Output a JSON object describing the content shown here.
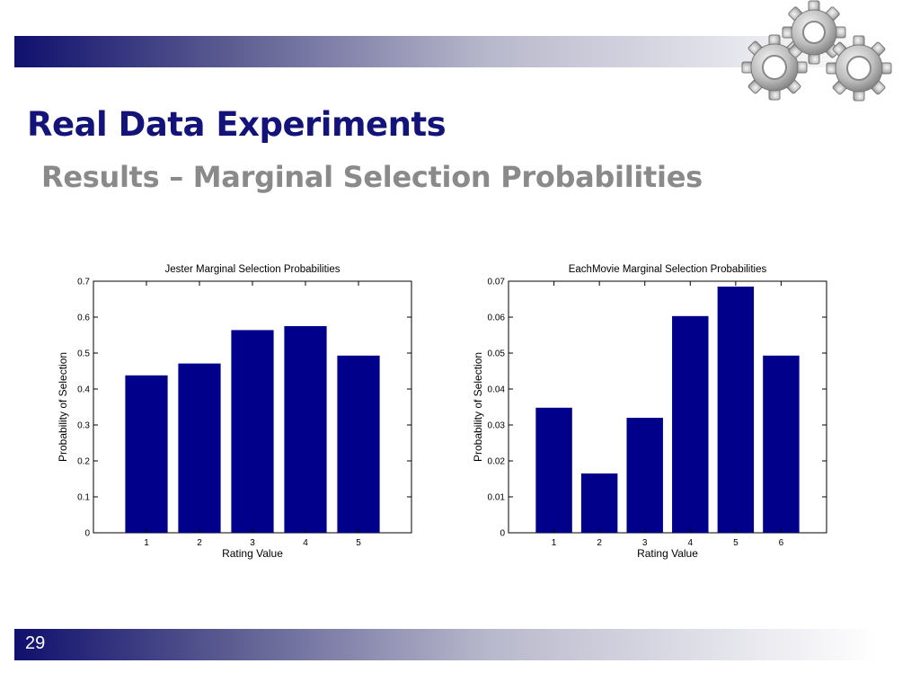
{
  "slide": {
    "title": "Real Data Experiments",
    "subtitle": "Results – Marginal Selection Probabilities",
    "page_number": "29"
  },
  "chart_data": [
    {
      "type": "bar",
      "title": "Jester Marginal Selection Probabilities",
      "xlabel": "Rating Value",
      "ylabel": "Probability of Selection",
      "categories": [
        "1",
        "2",
        "3",
        "4",
        "5"
      ],
      "values": [
        0.438,
        0.471,
        0.564,
        0.575,
        0.493
      ],
      "ylim": [
        0,
        0.7
      ],
      "yticks": [
        "0",
        "0.1",
        "0.2",
        "0.3",
        "0.4",
        "0.5",
        "0.6",
        "0.7"
      ],
      "bar_color": "#00008b",
      "grid": false
    },
    {
      "type": "bar",
      "title": "EachMovie Marginal Selection Probabilities",
      "xlabel": "Rating Value",
      "ylabel": "Probability of Selection",
      "categories": [
        "1",
        "2",
        "3",
        "4",
        "5",
        "6"
      ],
      "values": [
        0.0348,
        0.0165,
        0.032,
        0.0603,
        0.0685,
        0.0493
      ],
      "ylim": [
        0,
        0.07
      ],
      "yticks": [
        "0",
        "0.01",
        "0.02",
        "0.03",
        "0.04",
        "0.05",
        "0.06",
        "0.07"
      ],
      "bar_color": "#00008b",
      "grid": false
    }
  ],
  "colors": {
    "title": "#13137a",
    "subtitle": "#8a8a8a",
    "band_dark": "#10106e"
  },
  "icons": {
    "decoration": "gears-icon"
  }
}
